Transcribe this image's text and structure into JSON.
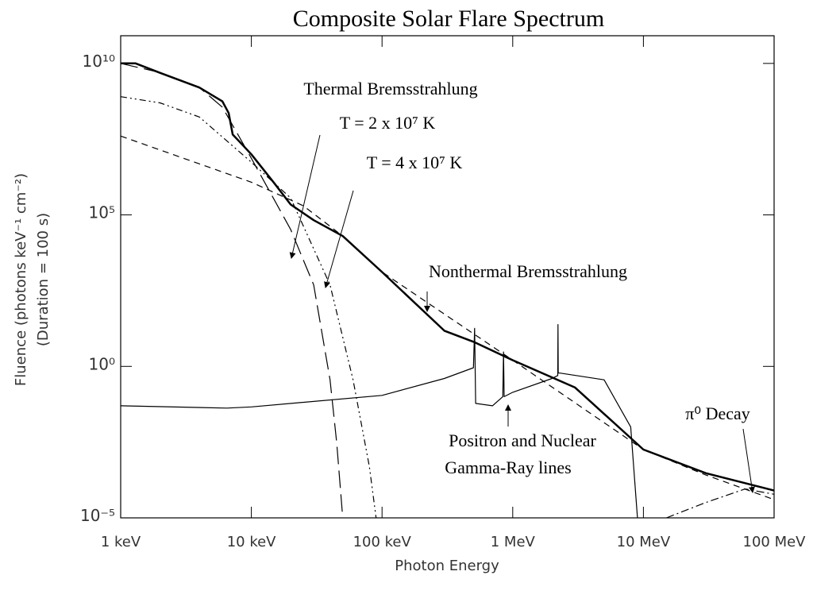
{
  "chart_data": {
    "type": "line",
    "title": "Composite Solar Flare Spectrum",
    "x_label": "Photon Energy",
    "y_label": [
      "Fluence (photons keV⁻¹ cm⁻²)",
      "(Duration = 100 s)"
    ],
    "xscale": "log",
    "yscale": "log",
    "xlim": [
      1,
      100000
    ],
    "ylim": [
      1e-05,
      100000000000.0
    ],
    "xticks": [
      {
        "value": 1,
        "label": "1 keV"
      },
      {
        "value": 10,
        "label": "10 keV"
      },
      {
        "value": 100,
        "label": "100 keV"
      },
      {
        "value": 1000,
        "label": "1 MeV"
      },
      {
        "value": 10000,
        "label": "10 MeV"
      },
      {
        "value": 100000,
        "label": "100 MeV"
      }
    ],
    "yticks": [
      {
        "value": 10000000000.0,
        "label": "10¹⁰"
      },
      {
        "value": 100000.0,
        "label": "10⁵"
      },
      {
        "value": 1,
        "label": "10⁰"
      },
      {
        "value": 1e-05,
        "label": "10⁻⁵"
      }
    ],
    "annotations": [
      "Thermal Bremsstrahlung",
      "T = 2 x 10⁷ K",
      "T = 4 x 10⁷ K",
      "Nonthermal Bremsstrahlung",
      "Positron and Nuclear",
      "Gamma-Ray lines",
      "π⁰ Decay"
    ],
    "series": [
      {
        "color": "#000",
        "width": 2.5,
        "dash": "none",
        "x": [
          1,
          1.3,
          2,
          4,
          6,
          6.7,
          7.2,
          8,
          10,
          15,
          20,
          30,
          50,
          100,
          300,
          500,
          1000,
          3000,
          10000,
          30000,
          100000
        ],
        "values": [
          10000000000.0,
          10000000000.0,
          4900000000.0,
          1600000000.0,
          560000000.0,
          230000000.0,
          45000000.0,
          28000000.0,
          10000000.0,
          1100000.0,
          220000.0,
          67000.0,
          20000.0,
          1300,
          15,
          6.5,
          1.6,
          0.2,
          0.0018,
          0.0003,
          8e-05
        ]
      },
      {
        "color": "#000",
        "width": 1.2,
        "dash": "22 8",
        "x": [
          1,
          2,
          4,
          6,
          10,
          20,
          30,
          40,
          45,
          50
        ],
        "values": [
          10000000000.0,
          5000000000.0,
          1600000000.0,
          360000000.0,
          7400000.0,
          33000.0,
          490,
          0.36,
          0.003,
          1e-05
        ]
      },
      {
        "color": "#000",
        "width": 1.2,
        "dash": "8 4 2 4 2 4",
        "x": [
          1,
          2,
          4,
          10,
          20,
          40,
          60,
          80,
          90
        ],
        "values": [
          800000000.0,
          500000000.0,
          170000000.0,
          5500000.0,
          360000.0,
          490,
          0.36,
          0.0005,
          1e-05
        ]
      },
      {
        "color": "#000",
        "width": 1.2,
        "dash": "8 6",
        "x": [
          1,
          10,
          25,
          50,
          100,
          1000,
          10000,
          30000,
          100000
        ],
        "values": [
          40000000.0,
          1200000.0,
          200000.0,
          20000.0,
          1300,
          1.6,
          0.0018,
          0.00026,
          4e-05
        ]
      },
      {
        "color": "#000",
        "width": 1.2,
        "dash": "none",
        "x": [
          1,
          6.5,
          10,
          100,
          300,
          500,
          511,
          520,
          700,
          840,
          850,
          860,
          1000,
          2000,
          2210,
          2220,
          2230,
          2300,
          5000,
          8000,
          9000
        ],
        "values": [
          0.05,
          0.042,
          0.046,
          0.11,
          0.4,
          0.9,
          18,
          0.06,
          0.05,
          0.1,
          3,
          0.1,
          0.14,
          0.4,
          0.5,
          24,
          0.6,
          0.6,
          0.36,
          0.01,
          1e-05
        ]
      },
      {
        "color": "#000",
        "width": 1.2,
        "dash": "10 4 2 4",
        "x": [
          15000,
          30000,
          60000,
          100000
        ],
        "values": [
          1e-05,
          3.2e-05,
          9e-05,
          6e-05
        ]
      }
    ]
  }
}
